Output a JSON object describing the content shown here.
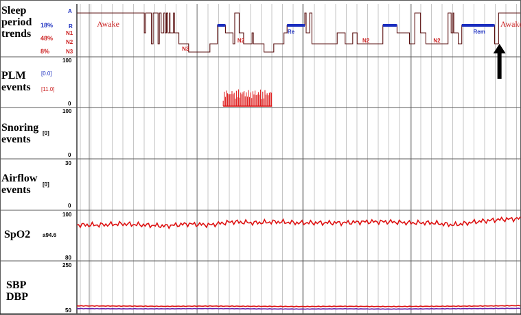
{
  "colors": {
    "awake_red": "#cc2222",
    "rem_blue": "#1a2dbf",
    "spo2_red": "#dd1111",
    "dbp_purple": "#6622aa",
    "grid": "#b8b8b8",
    "border": "#5a5a5a"
  },
  "panels": [
    {
      "name": "sleep",
      "label_lines": [
        "Sleep",
        "period",
        "trends"
      ],
      "percents": [
        "18%",
        "48%",
        "8%"
      ],
      "stages": [
        "A",
        "R",
        "N1",
        "N2",
        "N3"
      ]
    },
    {
      "name": "plm",
      "label_lines": [
        "PLM",
        "events"
      ],
      "values": [
        "[0.0]",
        "[11.0]"
      ],
      "ticks": [
        "100",
        "0"
      ]
    },
    {
      "name": "snoring",
      "label_lines": [
        "Snoring",
        "events"
      ],
      "values": [
        "[0]"
      ],
      "ticks": [
        "100",
        "0"
      ]
    },
    {
      "name": "airflow",
      "label_lines": [
        "Airflow",
        "events"
      ],
      "values": [
        "[0]"
      ],
      "ticks": [
        "30",
        "0"
      ]
    },
    {
      "name": "spo2",
      "label_lines": [
        "SpO2"
      ],
      "values": [
        "a94.6"
      ],
      "ticks": [
        "100",
        "80"
      ]
    },
    {
      "name": "bp",
      "label_lines": [
        "SBP",
        "DBP"
      ],
      "values": [],
      "ticks": [
        "250",
        "50"
      ]
    }
  ],
  "chart_data": {
    "type": "line",
    "x_range": [
      0,
      100
    ],
    "hypnogram": {
      "levels": [
        "A",
        "R",
        "N1",
        "N2",
        "N3"
      ],
      "steps": [
        [
          0,
          "A"
        ],
        [
          15,
          "A"
        ],
        [
          15.2,
          "N1"
        ],
        [
          15.5,
          "A"
        ],
        [
          16.6,
          "A"
        ],
        [
          16.8,
          "N2"
        ],
        [
          17.2,
          "A"
        ],
        [
          18.3,
          "N2"
        ],
        [
          18.6,
          "A"
        ],
        [
          19,
          "N1"
        ],
        [
          19.6,
          "A"
        ],
        [
          19.9,
          "N1"
        ],
        [
          20.2,
          "A"
        ],
        [
          20.5,
          "N1"
        ],
        [
          20.9,
          "A"
        ],
        [
          21,
          "N1"
        ],
        [
          21.8,
          "A"
        ],
        [
          22,
          "N1"
        ],
        [
          23,
          "N2"
        ],
        [
          25,
          "N2"
        ],
        [
          25.2,
          "N3"
        ],
        [
          29.8,
          "N3"
        ],
        [
          30,
          "N2"
        ],
        [
          31.5,
          "N2"
        ],
        [
          31.7,
          "R"
        ],
        [
          33.3,
          "R"
        ],
        [
          33.5,
          "N1"
        ],
        [
          35,
          "N1"
        ],
        [
          35.2,
          "N2"
        ],
        [
          35.6,
          "A"
        ],
        [
          36.4,
          "A"
        ],
        [
          36.6,
          "N1"
        ],
        [
          37.4,
          "N1"
        ],
        [
          37.6,
          "N2"
        ],
        [
          39.3,
          "N2"
        ],
        [
          39.5,
          "N1"
        ],
        [
          39.8,
          "N2"
        ],
        [
          42,
          "N2"
        ],
        [
          42.2,
          "N3"
        ],
        [
          44.2,
          "N3"
        ],
        [
          44.4,
          "N2"
        ],
        [
          46.5,
          "N2"
        ],
        [
          46.7,
          "N1"
        ],
        [
          47.2,
          "N1"
        ],
        [
          47.4,
          "R"
        ],
        [
          51.2,
          "R"
        ],
        [
          51.4,
          "A"
        ],
        [
          51.7,
          "N1"
        ],
        [
          52.5,
          "A"
        ],
        [
          53,
          "N2"
        ],
        [
          58.5,
          "N2"
        ],
        [
          58.7,
          "N1"
        ],
        [
          60.3,
          "N1"
        ],
        [
          60.5,
          "N2"
        ],
        [
          62,
          "N2"
        ],
        [
          62.2,
          "N1"
        ],
        [
          63,
          "N1"
        ],
        [
          63.2,
          "N2"
        ],
        [
          68.8,
          "N2"
        ],
        [
          69,
          "R"
        ],
        [
          72,
          "R"
        ],
        [
          72.2,
          "N1"
        ],
        [
          74.8,
          "N1"
        ],
        [
          75,
          "N2"
        ],
        [
          76,
          "N2"
        ],
        [
          76.2,
          "A"
        ],
        [
          77.3,
          "A"
        ],
        [
          77.5,
          "N1"
        ],
        [
          78.5,
          "N1"
        ],
        [
          78.7,
          "N2"
        ],
        [
          83.5,
          "N2"
        ],
        [
          83.7,
          "A"
        ],
        [
          84.2,
          "A"
        ],
        [
          84.4,
          "N1"
        ],
        [
          84.8,
          "A"
        ],
        [
          85,
          "N1"
        ],
        [
          85.8,
          "N1"
        ],
        [
          86,
          "N2"
        ],
        [
          86.6,
          "N2"
        ],
        [
          86.8,
          "R"
        ],
        [
          94,
          "R"
        ],
        [
          94.2,
          "N2"
        ],
        [
          94.9,
          "N2"
        ],
        [
          95.1,
          "A"
        ],
        [
          100,
          "A"
        ]
      ],
      "annotations": [
        {
          "x": 4.5,
          "stage": "A",
          "text": "Awake"
        },
        {
          "x": 23.7,
          "stage": "N3",
          "text": "N3"
        },
        {
          "x": 36.2,
          "stage": "N2",
          "text": "N2"
        },
        {
          "x": 47.5,
          "stage": "R",
          "text": "Re"
        },
        {
          "x": 64.4,
          "stage": "N2",
          "text": "N2"
        },
        {
          "x": 80.4,
          "stage": "N2",
          "text": "N2"
        },
        {
          "x": 89.4,
          "stage": "R",
          "text": "Rem"
        },
        {
          "x": 95.5,
          "stage": "A",
          "text": "Awake"
        }
      ],
      "arrow_x": 95.3
    },
    "plm_cluster": {
      "x_start": 33,
      "x_end": 44,
      "ylim": [
        0,
        100
      ]
    },
    "spo2": {
      "ylim": [
        80,
        100
      ],
      "x": [
        0,
        5,
        10,
        15,
        20,
        25,
        30,
        35,
        40,
        45,
        50,
        55,
        60,
        65,
        70,
        75,
        80,
        85,
        90,
        95,
        100
      ],
      "values": [
        95,
        95,
        95.5,
        95,
        94.5,
        95.5,
        95,
        96.5,
        96,
        96.5,
        96,
        96,
        96,
        96.5,
        96.5,
        96,
        96,
        95,
        96.5,
        97.5,
        98
      ]
    },
    "sbp": {
      "ylim": [
        50,
        250
      ],
      "x": [
        0,
        10,
        20,
        30,
        40,
        50,
        60,
        70,
        80,
        90,
        100
      ],
      "values": [
        72,
        71,
        70,
        71,
        70,
        69,
        70,
        69,
        70,
        71,
        73
      ]
    },
    "dbp": {
      "ylim": [
        50,
        250
      ],
      "x": [
        0,
        10,
        20,
        30,
        40,
        50,
        60,
        70,
        80,
        90,
        100
      ],
      "values": [
        60,
        59,
        59,
        60,
        59,
        58,
        59,
        58,
        59,
        60,
        61
      ]
    }
  }
}
